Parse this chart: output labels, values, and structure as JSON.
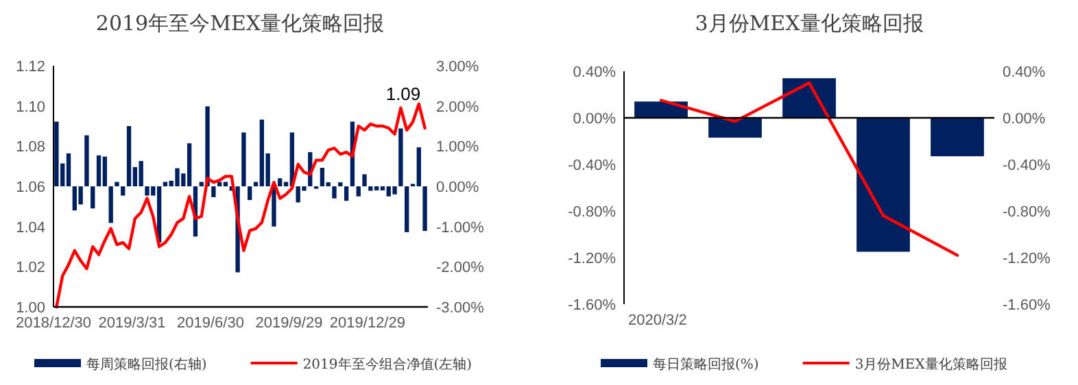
{
  "chart_data": [
    {
      "type": "bar",
      "title": "2019年至今MEX量化策略回报",
      "categories": [
        "2018/12/30",
        null,
        null,
        null,
        null,
        null,
        null,
        null,
        null,
        null,
        null,
        null,
        null,
        "2019/3/31",
        null,
        null,
        null,
        null,
        null,
        null,
        null,
        null,
        null,
        null,
        null,
        null,
        "2019/6/30",
        null,
        null,
        null,
        null,
        null,
        null,
        null,
        null,
        null,
        null,
        null,
        null,
        "2019/9/29",
        null,
        null,
        null,
        null,
        null,
        null,
        null,
        null,
        null,
        null,
        null,
        null,
        "2019/12/29",
        null,
        null,
        null,
        null,
        null,
        null,
        null,
        null,
        null
      ],
      "series": [
        {
          "name": "每周策略回报(右轴)",
          "axis": "y2",
          "color": "#002060",
          "values": [
            1.61,
            0.57,
            0.82,
            -0.6,
            -0.45,
            1.27,
            -0.55,
            0.77,
            0.74,
            -0.91,
            0.11,
            -0.23,
            1.5,
            0.48,
            0.63,
            -0.23,
            -0.23,
            -1.4,
            0.11,
            0.14,
            0.45,
            0.32,
            1.07,
            -1.25,
            0.11,
            1.99,
            -0.27,
            0.11,
            0.11,
            -0.11,
            -2.14,
            1.34,
            -0.34,
            0.11,
            1.66,
            0.82,
            -1.0,
            0.2,
            0.11,
            1.34,
            -0.4,
            -0.11,
            0.85,
            -0.06,
            0.46,
            0.1,
            -0.3,
            0.1,
            -0.36,
            1.61,
            -0.25,
            0.3,
            -0.11,
            -0.1,
            -0.1,
            -0.25,
            -0.2,
            1.44,
            -1.14,
            0.06,
            0.97,
            -1.11
          ]
        },
        {
          "name": "2019年至今组合净值(左轴)",
          "type": "line",
          "axis": "y",
          "color": "#ff0000",
          "values": [
            1.0,
            1.0155,
            1.021,
            1.028,
            1.023,
            1.019,
            1.03,
            1.026,
            1.033,
            1.039,
            1.031,
            1.032,
            1.029,
            1.044,
            1.047,
            1.054,
            1.045,
            1.03,
            1.032,
            1.036,
            1.042,
            1.044,
            1.055,
            1.044,
            1.045,
            1.064,
            1.062,
            1.063,
            1.065,
            1.065,
            1.044,
            1.028,
            1.038,
            1.039,
            1.042,
            1.053,
            1.062,
            1.054,
            1.056,
            1.059,
            1.071,
            1.067,
            1.066,
            1.073,
            1.073,
            1.078,
            1.079,
            1.076,
            1.077,
            1.075,
            1.09,
            1.088,
            1.091,
            1.09,
            1.09,
            1.089,
            1.086,
            1.099,
            1.088,
            1.092,
            1.101,
            1.089
          ]
        }
      ],
      "ylim": [
        1.0,
        1.12
      ],
      "yticks": [
        {
          "value": 1.0,
          "label": "1.00"
        },
        {
          "value": 1.02,
          "label": "1.02"
        },
        {
          "value": 1.04,
          "label": "1.04"
        },
        {
          "value": 1.06,
          "label": "1.06"
        },
        {
          "value": 1.08,
          "label": "1.08"
        },
        {
          "value": 1.1,
          "label": "1.10"
        },
        {
          "value": 1.12,
          "label": "1.12"
        }
      ],
      "y2lim": [
        -3,
        3
      ],
      "y2ticks": [
        {
          "value": -3,
          "label": "-3.00%"
        },
        {
          "value": -2,
          "label": "-2.00%"
        },
        {
          "value": -1,
          "label": "-1.00%"
        },
        {
          "value": 0,
          "label": "0.00%"
        },
        {
          "value": 1,
          "label": "1.00%"
        },
        {
          "value": 2,
          "label": "2.00%"
        },
        {
          "value": 3,
          "label": "3.00%"
        }
      ],
      "annotations": [
        "1.09"
      ],
      "legend": "bottom"
    },
    {
      "type": "bar",
      "title": "3月份MEX量化策略回报",
      "categories": [
        "2020/3/2",
        null,
        null,
        null,
        null
      ],
      "series": [
        {
          "name": "每日策略回报(%)",
          "axis": "y",
          "color": "#002060",
          "values": [
            0.14,
            -0.17,
            0.34,
            -1.15,
            -0.33
          ]
        },
        {
          "name": "3月份MEX量化策略回报",
          "type": "line",
          "axis": "y2",
          "color": "#ff0000",
          "values": [
            0.15,
            -0.03,
            0.3,
            -0.84,
            -1.18
          ]
        }
      ],
      "ylim": [
        -1.6,
        0.4
      ],
      "yticks": [
        {
          "value": -1.6,
          "label": "-1.60%"
        },
        {
          "value": -1.2,
          "label": "-1.20%"
        },
        {
          "value": -0.8,
          "label": "-0.80%"
        },
        {
          "value": -0.4,
          "label": "-0.40%"
        },
        {
          "value": 0,
          "label": "0.00%"
        },
        {
          "value": 0.4,
          "label": "0.40%"
        }
      ],
      "y2lim": [
        -1.6,
        0.4
      ],
      "y2ticks": [
        {
          "value": -1.6,
          "label": "-1.60%"
        },
        {
          "value": -1.2,
          "label": "-1.20%"
        },
        {
          "value": -0.8,
          "label": "-0.80%"
        },
        {
          "value": -0.4,
          "label": "-0.40%"
        },
        {
          "value": 0,
          "label": "0.00%"
        },
        {
          "value": 0.4,
          "label": "0.40%"
        }
      ],
      "legend": "bottom"
    }
  ]
}
